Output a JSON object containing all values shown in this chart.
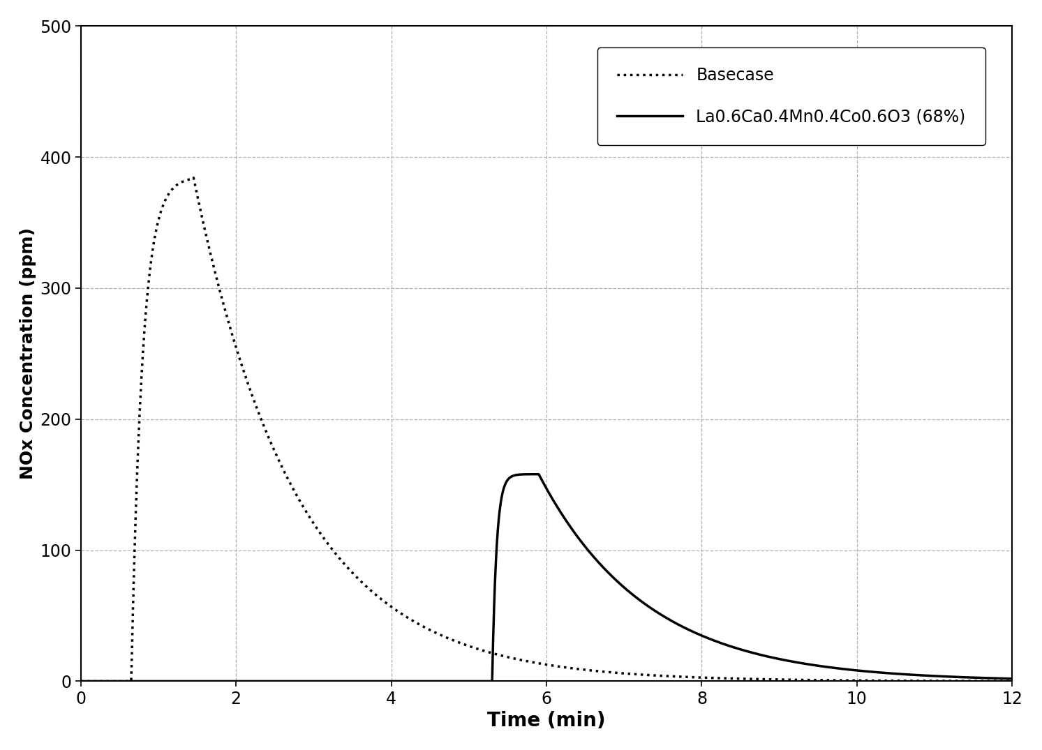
{
  "title": "",
  "xlabel": "Time (min)",
  "ylabel": "NOx Concentration (ppm)",
  "xlim": [
    0,
    12
  ],
  "ylim": [
    0,
    500
  ],
  "xticks": [
    0,
    2,
    4,
    6,
    8,
    10,
    12
  ],
  "yticks": [
    0,
    100,
    200,
    300,
    400,
    500
  ],
  "legend_entries": [
    "Basecase",
    "La0.6Ca0.4Mn0.4Co0.6O3 (68%)"
  ],
  "background_color": "#ffffff",
  "grid_color": "#aaaaaa",
  "line_color": "#000000",
  "xlabel_fontsize": 20,
  "ylabel_fontsize": 18,
  "tick_fontsize": 17,
  "legend_fontsize": 17,
  "basecase_peak_t": 1.45,
  "basecase_peak_val": 385,
  "basecase_start": 0.65,
  "basecase_rise_rate": 7.0,
  "basecase_decay_rate": 0.75,
  "catalyst_peak_t": 5.9,
  "catalyst_peak_val": 158,
  "catalyst_start": 5.3,
  "catalyst_rise_rate": 18.0,
  "catalyst_decay_rate": 0.72
}
